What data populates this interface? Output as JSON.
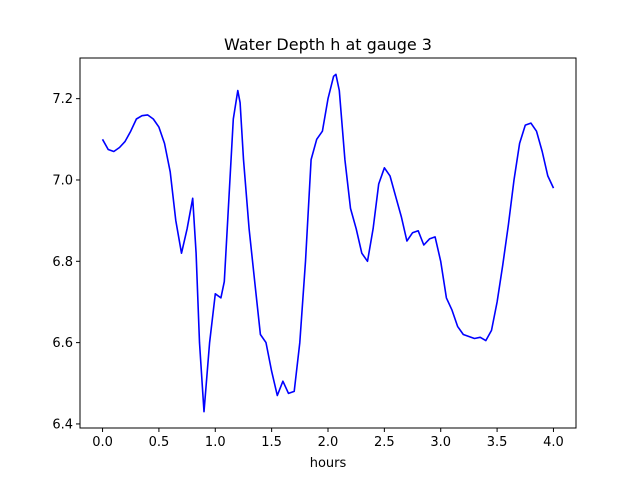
{
  "chart_data": {
    "type": "line",
    "title": "Water Depth h at gauge 3",
    "xlabel": "hours",
    "ylabel": "",
    "xlim": [
      -0.2,
      4.2
    ],
    "ylim": [
      6.39,
      7.3
    ],
    "xticks": [
      0.0,
      0.5,
      1.0,
      1.5,
      2.0,
      2.5,
      3.0,
      3.5,
      4.0
    ],
    "xtick_labels": [
      "0.0",
      "0.5",
      "1.0",
      "1.5",
      "2.0",
      "2.5",
      "3.0",
      "3.5",
      "4.0"
    ],
    "yticks": [
      6.4,
      6.6,
      6.8,
      7.0,
      7.2
    ],
    "ytick_labels": [
      "6.4",
      "6.6",
      "6.8",
      "7.0",
      "7.2"
    ],
    "grid": false,
    "legend": "none",
    "line_color": "#0000ff",
    "series": [
      {
        "x": [
          0.0,
          0.05,
          0.1,
          0.15,
          0.2,
          0.25,
          0.3,
          0.35,
          0.4,
          0.45,
          0.5,
          0.55,
          0.6,
          0.65,
          0.7,
          0.75,
          0.8,
          0.83,
          0.86,
          0.9,
          0.95,
          1.0,
          1.05,
          1.08,
          1.12,
          1.16,
          1.2,
          1.22,
          1.25,
          1.3,
          1.35,
          1.4,
          1.45,
          1.5,
          1.55,
          1.6,
          1.65,
          1.7,
          1.75,
          1.8,
          1.85,
          1.9,
          1.95,
          2.0,
          2.05,
          2.07,
          2.1,
          2.15,
          2.2,
          2.25,
          2.3,
          2.35,
          2.4,
          2.45,
          2.5,
          2.55,
          2.6,
          2.65,
          2.7,
          2.75,
          2.8,
          2.85,
          2.9,
          2.95,
          3.0,
          3.05,
          3.1,
          3.15,
          3.2,
          3.25,
          3.3,
          3.35,
          3.4,
          3.45,
          3.5,
          3.55,
          3.6,
          3.65,
          3.7,
          3.75,
          3.8,
          3.85,
          3.9,
          3.95,
          4.0
        ],
        "y": [
          7.1,
          7.075,
          7.07,
          7.08,
          7.095,
          7.12,
          7.15,
          7.158,
          7.16,
          7.15,
          7.13,
          7.09,
          7.02,
          6.9,
          6.82,
          6.88,
          6.955,
          6.82,
          6.6,
          6.43,
          6.6,
          6.72,
          6.71,
          6.75,
          6.95,
          7.15,
          7.22,
          7.19,
          7.05,
          6.88,
          6.75,
          6.62,
          6.6,
          6.53,
          6.47,
          6.505,
          6.475,
          6.48,
          6.6,
          6.8,
          7.05,
          7.1,
          7.12,
          7.2,
          7.255,
          7.26,
          7.22,
          7.05,
          6.93,
          6.88,
          6.82,
          6.8,
          6.88,
          6.99,
          7.03,
          7.01,
          6.96,
          6.91,
          6.85,
          6.87,
          6.875,
          6.84,
          6.855,
          6.86,
          6.8,
          6.71,
          6.68,
          6.64,
          6.62,
          6.615,
          6.61,
          6.613,
          6.605,
          6.63,
          6.7,
          6.79,
          6.89,
          7.0,
          7.09,
          7.135,
          7.14,
          7.12,
          7.07,
          7.01,
          6.98
        ]
      }
    ]
  }
}
